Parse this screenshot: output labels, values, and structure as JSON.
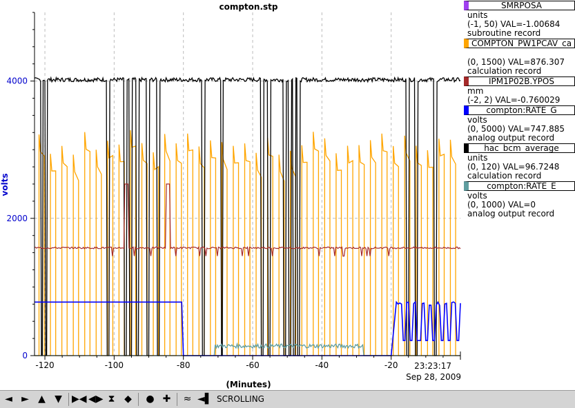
{
  "chart_data": {
    "type": "line",
    "title": "compton.stp",
    "xlabel": "(Minutes)",
    "ylabel": "volts",
    "xlim": [
      -123,
      0
    ],
    "ylim": [
      0,
      5000
    ],
    "x_ticks": [
      -120,
      -100,
      -80,
      -60,
      -40,
      -20
    ],
    "x_tick_labels": [
      "-120",
      "-100",
      "-80",
      "-60",
      "-40",
      "-20"
    ],
    "y_ticks": [
      0,
      2000,
      4000
    ],
    "y_tick_labels": [
      "0",
      "2000",
      "4000"
    ],
    "grid": true,
    "timestamp_time": "23:23:17",
    "timestamp_date": "Sep 28, 2009",
    "legend_position": "right",
    "series": [
      {
        "name": "SMRPOSA",
        "color": "#a040f0",
        "units": "units",
        "range": "(-1, 50) VAL=-1.00684",
        "record": "subroutine record",
        "note": "flat near zero"
      },
      {
        "name": "COMPTON_PW1PCAV_ca",
        "color": "#ffa500",
        "units": "",
        "range": "(0, 1500) VAL=876.307",
        "record": "calculation record",
        "pattern": "square wave between ~0 and ~3000 volts display with top ~2800-3400, ~36 cycles"
      },
      {
        "name": "IPM1P02B.YPOS",
        "color": "#a52a2a",
        "units": "mm",
        "range": "(-2, 2) VAL=-0.760029",
        "record": "",
        "baseline_display": 1570
      },
      {
        "name": "compton:RATE_G",
        "color": "#0000ff",
        "units": "volts",
        "range": "(0, 5000) VAL=747.885",
        "record": "analog output record",
        "points": [
          [
            -123,
            780
          ],
          [
            -80.5,
            780
          ],
          [
            -80,
            0
          ],
          [
            -20,
            0
          ],
          [
            -18.5,
            780
          ],
          [
            0,
            760
          ]
        ]
      },
      {
        "name": "hac_bcm_average",
        "color": "#000000",
        "units": "units",
        "range": "(0, 120) VAL=96.7248",
        "record": "calculation record",
        "baseline_display": 4020
      },
      {
        "name": "compton:RATE_E",
        "color": "#5f9ea0",
        "units": "volts",
        "range": "(0, 1000) VAL=0",
        "record": "analog output record",
        "points": [
          [
            -123,
            0
          ],
          [
            -71,
            0
          ],
          [
            -71,
            150
          ],
          [
            -28,
            150
          ],
          [
            -27,
            0
          ],
          [
            0,
            0
          ]
        ]
      }
    ]
  },
  "legend": [
    {
      "name": "SMRPOSA",
      "color": "#a040f0",
      "line1": "units",
      "line2": "(-1, 50) VAL=-1.00684",
      "line3": "subroutine record"
    },
    {
      "name": "COMPTON_PW1PCAV_ca",
      "color": "#ffa500",
      "line1": "",
      "line2": "(0, 1500) VAL=876.307",
      "line3": "calculation record"
    },
    {
      "name": "IPM1P02B.YPOS",
      "color": "#a52a2a",
      "line1": "mm",
      "line2": "(-2, 2) VAL=-0.760029",
      "line3": ""
    },
    {
      "name": "compton:RATE_G",
      "color": "#0000ff",
      "line1": "volts",
      "line2": "(0, 5000) VAL=747.885",
      "line3": "analog output record"
    },
    {
      "name": "hac_bcm_average",
      "color": "#000000",
      "line1": "units",
      "line2": "(0, 120) VAL=96.7248",
      "line3": "calculation record"
    },
    {
      "name": "compton:RATE_E",
      "color": "#5f9ea0",
      "line1": "volts",
      "line2": "(0, 1000) VAL=0",
      "line3": "analog output record"
    }
  ],
  "toolbar": {
    "status_text": "SCROLLING",
    "buttons": [
      {
        "name": "scroll-left-icon",
        "glyph": "◄"
      },
      {
        "name": "scroll-right-icon",
        "glyph": "►"
      },
      {
        "name": "scroll-up-icon",
        "glyph": "▲"
      },
      {
        "name": "scroll-down-icon",
        "glyph": "▼"
      },
      {
        "name": "zoom-in-x-icon",
        "glyph": "▶◀"
      },
      {
        "name": "zoom-out-x-icon",
        "glyph": "◀▶"
      },
      {
        "name": "zoom-in-y-icon",
        "glyph": "⧗"
      },
      {
        "name": "zoom-out-y-icon",
        "glyph": "◆"
      },
      {
        "name": "stop-icon",
        "glyph": "●"
      },
      {
        "name": "add-icon",
        "glyph": "✚"
      },
      {
        "name": "autoscale-icon",
        "glyph": "≈"
      },
      {
        "name": "scroll-mode-icon",
        "glyph": "◄▌"
      }
    ]
  }
}
